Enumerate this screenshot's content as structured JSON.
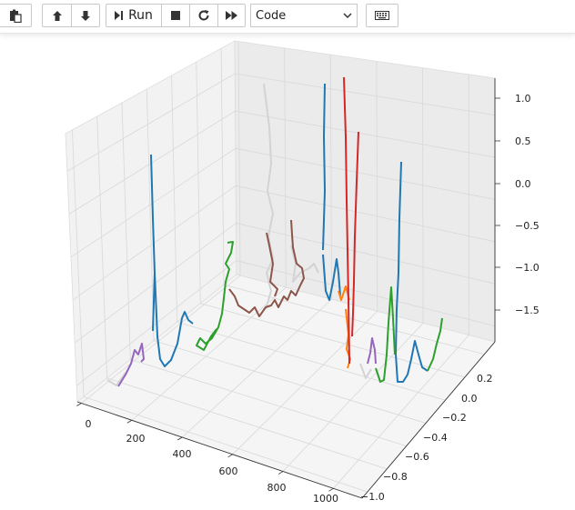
{
  "toolbar": {
    "run_label": "Run",
    "cell_type": {
      "selected": "Code"
    },
    "buttons": [
      "paste-icon",
      "move-up-icon",
      "move-down-icon",
      "run-icon",
      "stop-icon",
      "restart-icon",
      "fast-forward-icon",
      "keyboard-icon"
    ]
  },
  "chart_data": {
    "type": "line",
    "projection": "3d",
    "grid": true,
    "x_ticks": [
      "0",
      "200",
      "400",
      "600",
      "800",
      "1000"
    ],
    "y_ticks": [
      "0.2",
      "0.0",
      "−0.2",
      "−0.4",
      "−0.6",
      "−0.8",
      "−1.0"
    ],
    "z_ticks": [
      "1.0",
      "0.5",
      "0.0",
      "−0.5",
      "−1.0",
      "−1.5"
    ],
    "xlim": [
      0,
      1000
    ],
    "ylim": [
      -1.0,
      0.3
    ],
    "zlim": [
      -1.9,
      1.1
    ],
    "series_colors": [
      "#1f77b4",
      "#ff7f0e",
      "#2ca02c",
      "#d62728",
      "#9467bd",
      "#8c564b",
      "#d3d3d3"
    ]
  }
}
